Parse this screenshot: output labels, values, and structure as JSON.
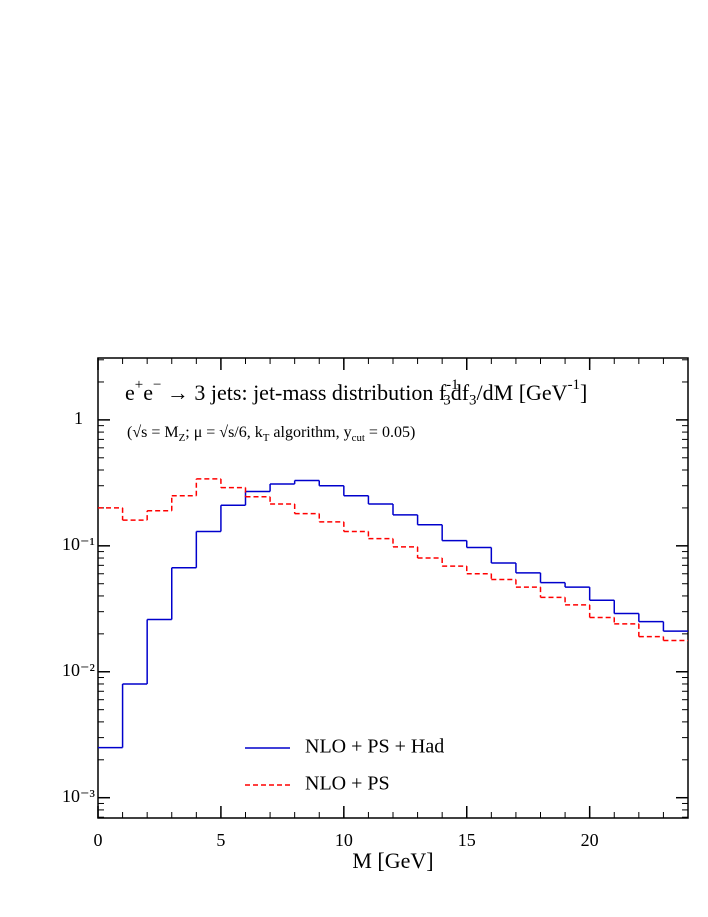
{
  "chart_data": {
    "type": "histogram",
    "title": [
      {
        "text": "e"
      },
      {
        "text": "+",
        "pos": "sup"
      },
      {
        "text": "e"
      },
      {
        "text": "−",
        "pos": "sup"
      },
      {
        "text": " → 3 jets: jet-mass distribution f"
      },
      {
        "text": "-1",
        "pos": "sup"
      },
      {
        "text": "3",
        "pos": "sub"
      },
      {
        "text": "df"
      },
      {
        "text": "3",
        "pos": "sub"
      },
      {
        "text": "/dM [GeV"
      },
      {
        "text": "-1",
        "pos": "sup"
      },
      {
        "text": "]"
      }
    ],
    "subtitle": [
      {
        "text": "(√s = M"
      },
      {
        "text": "Z",
        "pos": "sub"
      },
      {
        "text": "; μ = √s/6, k"
      },
      {
        "text": "T",
        "pos": "sub"
      },
      {
        "text": " algorithm, y"
      },
      {
        "text": "cut",
        "pos": "sub"
      },
      {
        "text": " = 0.05)"
      }
    ],
    "xlabel": "M [GeV]",
    "bins": [
      0,
      1,
      2,
      3,
      4,
      5,
      6,
      7,
      8,
      9,
      10,
      11,
      12,
      13,
      14,
      15,
      16,
      17,
      18,
      19,
      20,
      21,
      22,
      23,
      24
    ],
    "series": [
      {
        "name": "NLO + PS + Had",
        "color": "#0000cc",
        "dash": "solid",
        "values": [
          0.0025,
          0.008,
          0.026,
          0.067,
          0.13,
          0.21,
          0.27,
          0.31,
          0.33,
          0.3,
          0.25,
          0.215,
          0.176,
          0.147,
          0.11,
          0.097,
          0.073,
          0.061,
          0.051,
          0.047,
          0.037,
          0.029,
          0.025,
          0.021
        ]
      },
      {
        "name": "NLO + PS",
        "color": "#ff0000",
        "dash": "dashed",
        "values": [
          0.2,
          0.16,
          0.19,
          0.25,
          0.34,
          0.29,
          0.245,
          0.215,
          0.18,
          0.155,
          0.13,
          0.114,
          0.098,
          0.08,
          0.069,
          0.06,
          0.054,
          0.047,
          0.039,
          0.034,
          0.027,
          0.024,
          0.019,
          0.0177
        ]
      }
    ],
    "xlim": [
      0,
      24
    ],
    "xticks": [
      0,
      5,
      10,
      15,
      20
    ],
    "ylim": [
      0.00069,
      3.1
    ],
    "log_y": true,
    "yticks": [
      1,
      {
        "value": 0.1,
        "label": "10⁻¹"
      },
      {
        "value": 0.01,
        "label": "10⁻²"
      },
      {
        "value": 0.001,
        "label": "10⁻³"
      }
    ],
    "legend": "lower center"
  }
}
